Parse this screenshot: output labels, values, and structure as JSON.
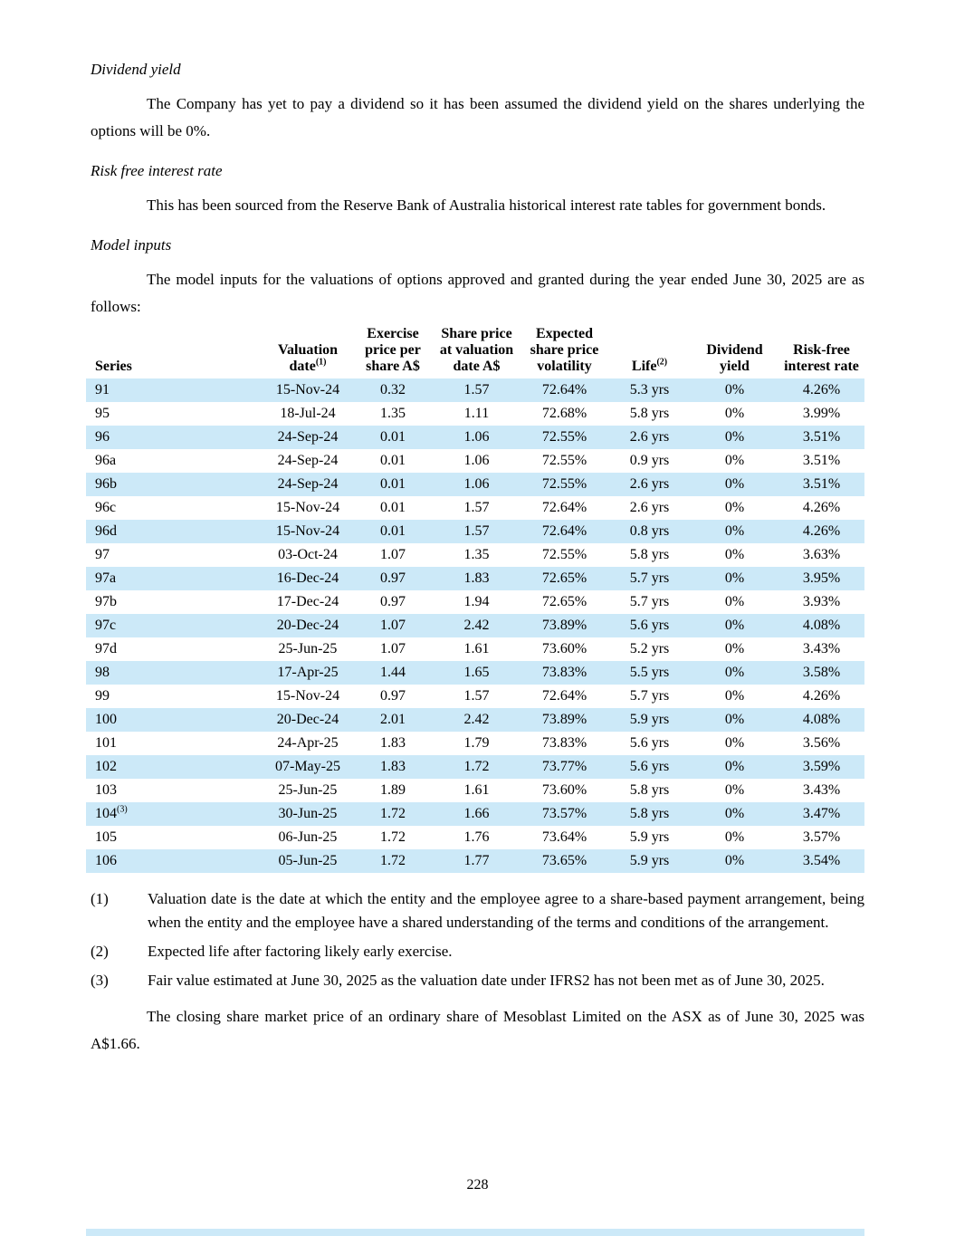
{
  "colors": {
    "row_stripe": "#cce9f8",
    "text": "#000000",
    "background": "#ffffff"
  },
  "headings": {
    "dividend_yield": "Dividend yield",
    "risk_free": "Risk free interest rate",
    "model_inputs": "Model inputs"
  },
  "paragraphs": {
    "dividend_yield": "The Company has yet to pay a dividend so it has been assumed the dividend yield on the shares underlying the options will be 0%.",
    "risk_free": "This has been sourced from the Reserve Bank of Australia historical interest rate tables for government bonds.",
    "model_inputs": "The model inputs for the valuations of options approved and granted during the year ended June 30, 2025 are as follows:"
  },
  "table": {
    "headers": [
      {
        "label": "Series",
        "sup": ""
      },
      {
        "label": "Valuation date",
        "sup": "(1)"
      },
      {
        "label": "Exercise price per share A$",
        "sup": ""
      },
      {
        "label": "Share price at valuation date A$",
        "sup": ""
      },
      {
        "label": "Expected share price volatility",
        "sup": ""
      },
      {
        "label": "Life",
        "sup": "(2)"
      },
      {
        "label": "Dividend yield",
        "sup": ""
      },
      {
        "label": "Risk-free interest rate",
        "sup": ""
      }
    ],
    "rows": [
      {
        "series": "91",
        "sup": "",
        "values": [
          "15-Nov-24",
          "0.32",
          "1.57",
          "72.64%",
          "5.3 yrs",
          "0%",
          "4.26%"
        ]
      },
      {
        "series": "95",
        "sup": "",
        "values": [
          "18-Jul-24",
          "1.35",
          "1.11",
          "72.68%",
          "5.8 yrs",
          "0%",
          "3.99%"
        ]
      },
      {
        "series": "96",
        "sup": "",
        "values": [
          "24-Sep-24",
          "0.01",
          "1.06",
          "72.55%",
          "2.6 yrs",
          "0%",
          "3.51%"
        ]
      },
      {
        "series": "96a",
        "sup": "",
        "values": [
          "24-Sep-24",
          "0.01",
          "1.06",
          "72.55%",
          "0.9 yrs",
          "0%",
          "3.51%"
        ]
      },
      {
        "series": "96b",
        "sup": "",
        "values": [
          "24-Sep-24",
          "0.01",
          "1.06",
          "72.55%",
          "2.6 yrs",
          "0%",
          "3.51%"
        ]
      },
      {
        "series": "96c",
        "sup": "",
        "values": [
          "15-Nov-24",
          "0.01",
          "1.57",
          "72.64%",
          "2.6 yrs",
          "0%",
          "4.26%"
        ]
      },
      {
        "series": "96d",
        "sup": "",
        "values": [
          "15-Nov-24",
          "0.01",
          "1.57",
          "72.64%",
          "0.8 yrs",
          "0%",
          "4.26%"
        ]
      },
      {
        "series": "97",
        "sup": "",
        "values": [
          "03-Oct-24",
          "1.07",
          "1.35",
          "72.55%",
          "5.8 yrs",
          "0%",
          "3.63%"
        ]
      },
      {
        "series": "97a",
        "sup": "",
        "values": [
          "16-Dec-24",
          "0.97",
          "1.83",
          "72.65%",
          "5.7 yrs",
          "0%",
          "3.95%"
        ]
      },
      {
        "series": "97b",
        "sup": "",
        "values": [
          "17-Dec-24",
          "0.97",
          "1.94",
          "72.65%",
          "5.7 yrs",
          "0%",
          "3.93%"
        ]
      },
      {
        "series": "97c",
        "sup": "",
        "values": [
          "20-Dec-24",
          "1.07",
          "2.42",
          "73.89%",
          "5.6 yrs",
          "0%",
          "4.08%"
        ]
      },
      {
        "series": "97d",
        "sup": "",
        "values": [
          "25-Jun-25",
          "1.07",
          "1.61",
          "73.60%",
          "5.2 yrs",
          "0%",
          "3.43%"
        ]
      },
      {
        "series": "98",
        "sup": "",
        "values": [
          "17-Apr-25",
          "1.44",
          "1.65",
          "73.83%",
          "5.5 yrs",
          "0%",
          "3.58%"
        ]
      },
      {
        "series": "99",
        "sup": "",
        "values": [
          "15-Nov-24",
          "0.97",
          "1.57",
          "72.64%",
          "5.7 yrs",
          "0%",
          "4.26%"
        ]
      },
      {
        "series": "100",
        "sup": "",
        "values": [
          "20-Dec-24",
          "2.01",
          "2.42",
          "73.89%",
          "5.9 yrs",
          "0%",
          "4.08%"
        ]
      },
      {
        "series": "101",
        "sup": "",
        "values": [
          "24-Apr-25",
          "1.83",
          "1.79",
          "73.83%",
          "5.6 yrs",
          "0%",
          "3.56%"
        ]
      },
      {
        "series": "102",
        "sup": "",
        "values": [
          "07-May-25",
          "1.83",
          "1.72",
          "73.77%",
          "5.6 yrs",
          "0%",
          "3.59%"
        ]
      },
      {
        "series": "103",
        "sup": "",
        "values": [
          "25-Jun-25",
          "1.89",
          "1.61",
          "73.60%",
          "5.8 yrs",
          "0%",
          "3.43%"
        ]
      },
      {
        "series": "104",
        "sup": "(3)",
        "values": [
          "30-Jun-25",
          "1.72",
          "1.66",
          "73.57%",
          "5.8 yrs",
          "0%",
          "3.47%"
        ]
      },
      {
        "series": "105",
        "sup": "",
        "values": [
          "06-Jun-25",
          "1.72",
          "1.76",
          "73.64%",
          "5.9 yrs",
          "0%",
          "3.57%"
        ]
      },
      {
        "series": "106",
        "sup": "",
        "values": [
          "05-Jun-25",
          "1.72",
          "1.77",
          "73.65%",
          "5.9 yrs",
          "0%",
          "3.54%"
        ]
      }
    ]
  },
  "footnotes": [
    {
      "marker": "(1)",
      "text": "Valuation date is the date at which the entity and the employee agree to a share-based payment arrangement, being when the entity and the employee have a shared understanding of the terms and conditions of the arrangement."
    },
    {
      "marker": "(2)",
      "text": "Expected life after factoring likely early exercise."
    },
    {
      "marker": "(3)",
      "text": "Fair value estimated at June 30, 2025 as the valuation date under IFRS2 has not been met as of June 30, 2025."
    }
  ],
  "closing_paragraph": "The closing share market price of an ordinary share of Mesoblast Limited on the ASX as of June 30, 2025 was A$1.66.",
  "page_number": "228"
}
